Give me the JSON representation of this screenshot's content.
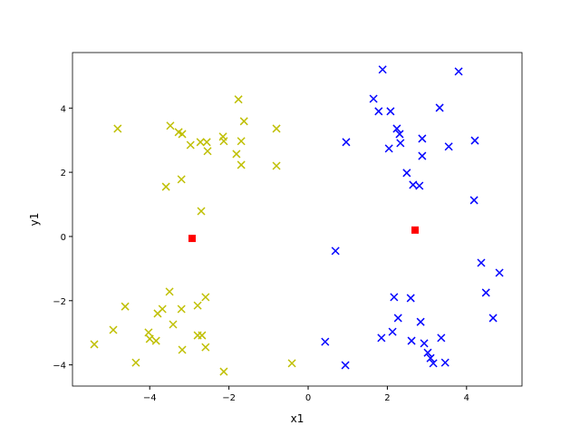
{
  "chart_data": {
    "type": "scatter",
    "xlabel": "x1",
    "ylabel": "y1",
    "xlim": [
      -5.95,
      5.4
    ],
    "ylim": [
      -4.66,
      5.73
    ],
    "xticks": [
      {
        "value": -4,
        "label": "−4"
      },
      {
        "value": -2,
        "label": "−2"
      },
      0,
      2,
      4
    ],
    "yticks": [
      {
        "value": -4,
        "label": "−4"
      },
      {
        "value": -2,
        "label": "−2"
      },
      0,
      2,
      4
    ],
    "grid": false,
    "series": [
      {
        "color": "#bfbf00",
        "marker": "x",
        "x": [
          -4.81,
          -3.48,
          -3.27,
          -3.18,
          -1.76,
          -1.62,
          -0.8,
          -2.15,
          -2.13,
          -2.72,
          -2.56,
          -1.69,
          -2.97,
          -2.54,
          -1.81,
          -1.69,
          -0.8,
          -3.2,
          -3.59,
          -2.7,
          -3.5,
          -4.62,
          -3.68,
          -3.8,
          -3.2,
          -2.59,
          -2.79,
          -4.92,
          -3.41,
          -4.03,
          -2.79,
          -2.68,
          -4.0,
          -3.84,
          -5.4,
          -3.18,
          -2.59,
          -4.35,
          -0.41,
          -2.13
        ],
        "y": [
          3.36,
          3.45,
          3.25,
          3.19,
          4.27,
          3.59,
          3.36,
          3.11,
          2.97,
          2.94,
          2.94,
          2.97,
          2.85,
          2.66,
          2.57,
          2.23,
          2.2,
          1.78,
          1.55,
          0.79,
          -1.72,
          -2.18,
          -2.26,
          -2.4,
          -2.26,
          -1.89,
          -2.15,
          -2.91,
          -2.74,
          -2.99,
          -3.08,
          -3.08,
          -3.19,
          -3.25,
          -3.36,
          -3.53,
          -3.45,
          -3.93,
          -3.95,
          -4.21
        ]
      },
      {
        "color": "#0000ff",
        "marker": "x",
        "x": [
          1.88,
          3.8,
          1.65,
          1.78,
          2.08,
          3.32,
          2.24,
          2.31,
          0.96,
          2.33,
          2.88,
          3.55,
          4.21,
          2.04,
          2.88,
          2.49,
          2.65,
          2.81,
          4.19,
          0.69,
          4.37,
          4.83,
          4.49,
          4.67,
          2.17,
          2.59,
          2.27,
          2.84,
          2.13,
          1.85,
          3.36,
          2.61,
          2.93,
          0.43,
          3.02,
          3.09,
          3.16,
          3.46,
          0.94
        ],
        "y": [
          5.2,
          5.14,
          4.29,
          3.9,
          3.9,
          4.01,
          3.36,
          3.19,
          2.94,
          2.91,
          3.05,
          2.8,
          2.99,
          2.74,
          2.51,
          1.98,
          1.61,
          1.58,
          1.13,
          -0.45,
          -0.82,
          -1.13,
          -1.75,
          -2.54,
          -1.89,
          -1.92,
          -2.54,
          -2.66,
          -2.97,
          -3.16,
          -3.16,
          -3.25,
          -3.33,
          -3.28,
          -3.62,
          -3.79,
          -3.95,
          -3.93,
          -4.01
        ]
      },
      {
        "color": "#ff0000",
        "marker": "s",
        "x": [
          -2.93,
          2.7
        ],
        "y": [
          -0.06,
          0.2
        ]
      }
    ]
  }
}
